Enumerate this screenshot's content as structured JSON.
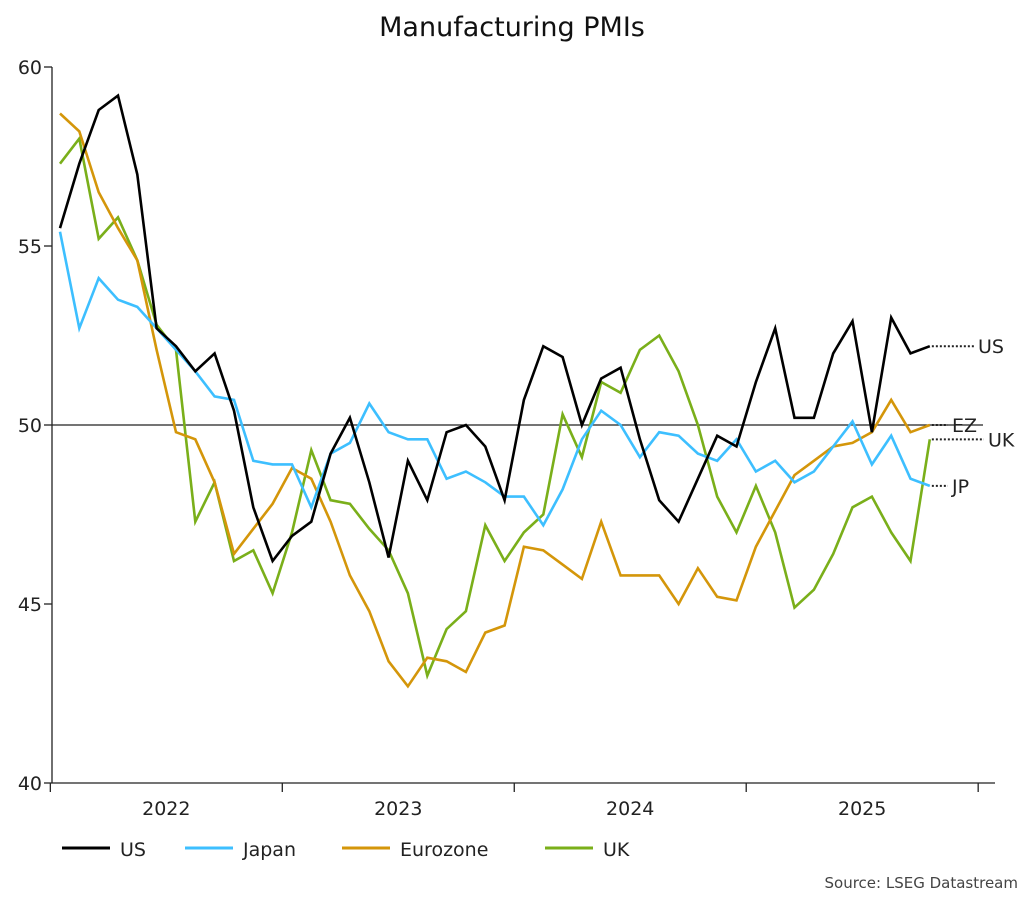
{
  "chart_data": {
    "type": "line",
    "title": "Manufacturing PMIs",
    "source": "Source: LSEG Datastream",
    "x_start": "2022-01",
    "x_frequency": "monthly",
    "x_tick_labels": [
      "2022",
      "2023",
      "2024",
      "2025"
    ],
    "ylim": [
      40,
      60
    ],
    "y_ticks": [
      40,
      45,
      50,
      55,
      60
    ],
    "reference_line": 50,
    "legend_position": "bottom-left",
    "series": [
      {
        "name": "US",
        "end_label": "US",
        "color": "#000000",
        "values": [
          55.5,
          57.3,
          58.8,
          59.2,
          57.0,
          52.7,
          52.2,
          51.5,
          52.0,
          50.4,
          47.7,
          46.2,
          46.9,
          47.3,
          49.2,
          50.2,
          48.4,
          46.3,
          49.0,
          47.9,
          49.8,
          50.0,
          49.4,
          47.9,
          50.7,
          52.2,
          51.9,
          50.0,
          51.3,
          51.6,
          49.6,
          47.9,
          47.3,
          48.5,
          49.7,
          49.4,
          51.2,
          52.7,
          50.2,
          50.2,
          52.0,
          52.9,
          49.8,
          53.0,
          52.0,
          52.2
        ]
      },
      {
        "name": "Japan",
        "end_label": "JP",
        "color": "#3dbfff",
        "values": [
          55.4,
          52.7,
          54.1,
          53.5,
          53.3,
          52.7,
          52.1,
          51.5,
          50.8,
          50.7,
          49.0,
          48.9,
          48.9,
          47.7,
          49.2,
          49.5,
          50.6,
          49.8,
          49.6,
          49.6,
          48.5,
          48.7,
          48.4,
          48.0,
          48.0,
          47.2,
          48.2,
          49.6,
          50.4,
          50.0,
          49.1,
          49.8,
          49.7,
          49.2,
          49.0,
          49.6,
          48.7,
          49.0,
          48.4,
          48.7,
          49.4,
          50.1,
          48.9,
          49.7,
          48.5,
          48.3
        ]
      },
      {
        "name": "Eurozone",
        "end_label": "EZ",
        "color": "#d4960a",
        "values": [
          58.7,
          58.2,
          56.5,
          55.5,
          54.6,
          52.1,
          49.8,
          49.6,
          48.4,
          46.4,
          47.1,
          47.8,
          48.8,
          48.5,
          47.3,
          45.8,
          44.8,
          43.4,
          42.7,
          43.5,
          43.4,
          43.1,
          44.2,
          44.4,
          46.6,
          46.5,
          46.1,
          45.7,
          47.3,
          45.8,
          45.8,
          45.8,
          45.0,
          46.0,
          45.2,
          45.1,
          46.6,
          47.6,
          48.6,
          49.0,
          49.4,
          49.5,
          49.8,
          50.7,
          49.8,
          50.0
        ]
      },
      {
        "name": "UK",
        "end_label": "UK",
        "color": "#7aaf1a",
        "values": [
          57.3,
          58.0,
          55.2,
          55.8,
          54.6,
          52.8,
          52.1,
          47.3,
          48.4,
          46.2,
          46.5,
          45.3,
          47.0,
          49.3,
          47.9,
          47.8,
          47.1,
          46.5,
          45.3,
          43.0,
          44.3,
          44.8,
          47.2,
          46.2,
          47.0,
          47.5,
          50.3,
          49.1,
          51.2,
          50.9,
          52.1,
          52.5,
          51.5,
          50.0,
          48.0,
          47.0,
          48.3,
          47.0,
          44.9,
          45.4,
          46.4,
          47.7,
          48.0,
          47.0,
          46.2,
          49.6
        ]
      }
    ]
  }
}
